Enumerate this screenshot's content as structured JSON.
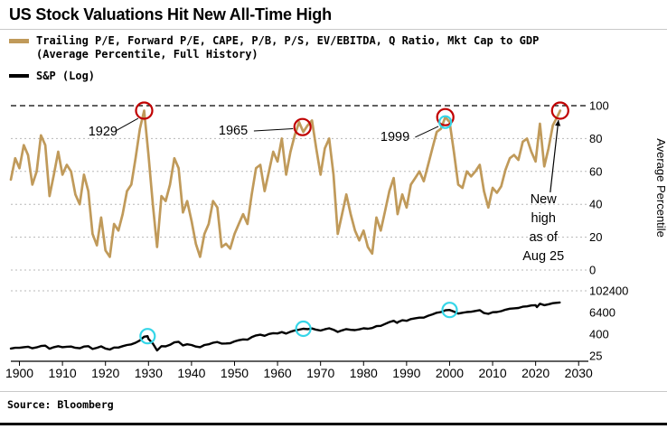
{
  "header": {
    "title": "US Stock Valuations Hit New All-Time High"
  },
  "legend": {
    "valuation": {
      "line1": "Trailing P/E, Forward P/E, CAPE, P/B, P/S, EV/EBITDA, Q Ratio, Mkt Cap to GDP",
      "line2": "(Average Percentile, Full History)",
      "color": "#C09A5A"
    },
    "sp": {
      "label": "S&P (Log)",
      "color": "#000000"
    }
  },
  "footer": {
    "source": "Source: Bloomberg"
  },
  "chart_data": {
    "type": "line",
    "title": "US Stock Valuations Hit New All-Time High",
    "x": {
      "ticks": [
        1900,
        1910,
        1920,
        1930,
        1940,
        1950,
        1960,
        1970,
        1980,
        1990,
        2000,
        2010,
        2020,
        2030
      ],
      "range": [
        1898,
        2031
      ]
    },
    "axes": {
      "percentile": {
        "label": "Average Percentile",
        "side": "right",
        "range": [
          0,
          100
        ],
        "ticks": [
          0,
          20,
          40,
          60,
          80,
          100
        ],
        "grid": [
          0,
          20,
          40,
          60,
          80
        ]
      },
      "sp_log": {
        "side": "right",
        "scale": "log",
        "ticks": [
          25,
          400,
          6400,
          102400
        ],
        "grid": [
          102400
        ]
      }
    },
    "reference_line": {
      "axis": "percentile",
      "value": 100,
      "style": "dashed"
    },
    "series": [
      {
        "name": "Valuation composite (Average Percentile, Full History)",
        "axis": "percentile",
        "color": "#C09A5A",
        "width": 2.7,
        "points": [
          [
            1898,
            55
          ],
          [
            1899,
            68
          ],
          [
            1900,
            62
          ],
          [
            1901,
            76
          ],
          [
            1902,
            70
          ],
          [
            1903,
            52
          ],
          [
            1904,
            60
          ],
          [
            1905,
            82
          ],
          [
            1906,
            76
          ],
          [
            1907,
            45
          ],
          [
            1908,
            58
          ],
          [
            1909,
            72
          ],
          [
            1910,
            58
          ],
          [
            1911,
            64
          ],
          [
            1912,
            60
          ],
          [
            1913,
            46
          ],
          [
            1914,
            40
          ],
          [
            1915,
            58
          ],
          [
            1916,
            48
          ],
          [
            1917,
            22
          ],
          [
            1918,
            15
          ],
          [
            1919,
            32
          ],
          [
            1920,
            12
          ],
          [
            1921,
            8
          ],
          [
            1922,
            28
          ],
          [
            1923,
            24
          ],
          [
            1924,
            34
          ],
          [
            1925,
            48
          ],
          [
            1926,
            52
          ],
          [
            1927,
            68
          ],
          [
            1928,
            86
          ],
          [
            1929,
            97
          ],
          [
            1930,
            70
          ],
          [
            1931,
            40
          ],
          [
            1932,
            14
          ],
          [
            1933,
            45
          ],
          [
            1934,
            42
          ],
          [
            1935,
            52
          ],
          [
            1936,
            68
          ],
          [
            1937,
            62
          ],
          [
            1938,
            35
          ],
          [
            1939,
            42
          ],
          [
            1940,
            30
          ],
          [
            1941,
            16
          ],
          [
            1942,
            8
          ],
          [
            1943,
            22
          ],
          [
            1944,
            28
          ],
          [
            1945,
            42
          ],
          [
            1946,
            38
          ],
          [
            1947,
            14
          ],
          [
            1948,
            16
          ],
          [
            1949,
            13
          ],
          [
            1950,
            22
          ],
          [
            1951,
            28
          ],
          [
            1952,
            34
          ],
          [
            1953,
            28
          ],
          [
            1954,
            46
          ],
          [
            1955,
            62
          ],
          [
            1956,
            64
          ],
          [
            1957,
            48
          ],
          [
            1958,
            60
          ],
          [
            1959,
            72
          ],
          [
            1960,
            66
          ],
          [
            1961,
            80
          ],
          [
            1962,
            58
          ],
          [
            1963,
            72
          ],
          [
            1964,
            82
          ],
          [
            1965,
            90
          ],
          [
            1966,
            84
          ],
          [
            1967,
            88
          ],
          [
            1968,
            91
          ],
          [
            1969,
            74
          ],
          [
            1970,
            58
          ],
          [
            1971,
            74
          ],
          [
            1972,
            80
          ],
          [
            1973,
            58
          ],
          [
            1974,
            22
          ],
          [
            1975,
            34
          ],
          [
            1976,
            46
          ],
          [
            1977,
            34
          ],
          [
            1978,
            24
          ],
          [
            1979,
            18
          ],
          [
            1980,
            24
          ],
          [
            1981,
            14
          ],
          [
            1982,
            10
          ],
          [
            1983,
            32
          ],
          [
            1984,
            24
          ],
          [
            1985,
            36
          ],
          [
            1986,
            48
          ],
          [
            1987,
            56
          ],
          [
            1987.9,
            34
          ],
          [
            1989,
            46
          ],
          [
            1990,
            38
          ],
          [
            1991,
            52
          ],
          [
            1992,
            56
          ],
          [
            1993,
            60
          ],
          [
            1994,
            54
          ],
          [
            1995,
            64
          ],
          [
            1996,
            74
          ],
          [
            1997,
            84
          ],
          [
            1998,
            86
          ],
          [
            1999,
            93
          ],
          [
            2000,
            90
          ],
          [
            2001,
            72
          ],
          [
            2002,
            52
          ],
          [
            2003,
            50
          ],
          [
            2004,
            60
          ],
          [
            2005,
            57
          ],
          [
            2006,
            60
          ],
          [
            2007,
            64
          ],
          [
            2008,
            48
          ],
          [
            2009,
            38
          ],
          [
            2010,
            50
          ],
          [
            2011,
            47
          ],
          [
            2012,
            51
          ],
          [
            2013,
            61
          ],
          [
            2014,
            68
          ],
          [
            2015,
            70
          ],
          [
            2016,
            67
          ],
          [
            2017,
            78
          ],
          [
            2018,
            80
          ],
          [
            2019,
            72
          ],
          [
            2020,
            66
          ],
          [
            2021,
            89
          ],
          [
            2022,
            63
          ],
          [
            2023,
            74
          ],
          [
            2024,
            88
          ],
          [
            2025,
            93
          ],
          [
            2025.7,
            97
          ]
        ]
      },
      {
        "name": "S&P (Log)",
        "axis": "sp_log",
        "color": "#000000",
        "width": 2.4,
        "points": [
          [
            1898,
            64
          ],
          [
            1899,
            70
          ],
          [
            1900,
            70
          ],
          [
            1901,
            76
          ],
          [
            1902,
            80
          ],
          [
            1903,
            66
          ],
          [
            1904,
            74
          ],
          [
            1905,
            88
          ],
          [
            1906,
            92
          ],
          [
            1907,
            62
          ],
          [
            1908,
            76
          ],
          [
            1909,
            86
          ],
          [
            1910,
            76
          ],
          [
            1911,
            80
          ],
          [
            1912,
            82
          ],
          [
            1913,
            70
          ],
          [
            1914,
            66
          ],
          [
            1915,
            82
          ],
          [
            1916,
            86
          ],
          [
            1917,
            60
          ],
          [
            1918,
            70
          ],
          [
            1919,
            84
          ],
          [
            1920,
            64
          ],
          [
            1921,
            56
          ],
          [
            1922,
            72
          ],
          [
            1923,
            72
          ],
          [
            1924,
            86
          ],
          [
            1925,
            100
          ],
          [
            1926,
            108
          ],
          [
            1927,
            134
          ],
          [
            1928,
            180
          ],
          [
            1929,
            290
          ],
          [
            1929.8,
            310
          ],
          [
            1930,
            220
          ],
          [
            1931,
            120
          ],
          [
            1932,
            50
          ],
          [
            1933,
            86
          ],
          [
            1934,
            84
          ],
          [
            1935,
            102
          ],
          [
            1936,
            140
          ],
          [
            1937,
            152
          ],
          [
            1938,
            96
          ],
          [
            1939,
            110
          ],
          [
            1940,
            100
          ],
          [
            1941,
            82
          ],
          [
            1942,
            76
          ],
          [
            1943,
            100
          ],
          [
            1944,
            110
          ],
          [
            1945,
            134
          ],
          [
            1946,
            146
          ],
          [
            1947,
            120
          ],
          [
            1948,
            122
          ],
          [
            1949,
            126
          ],
          [
            1950,
            158
          ],
          [
            1951,
            184
          ],
          [
            1952,
            204
          ],
          [
            1953,
            198
          ],
          [
            1954,
            272
          ],
          [
            1955,
            340
          ],
          [
            1956,
            372
          ],
          [
            1957,
            324
          ],
          [
            1958,
            408
          ],
          [
            1959,
            452
          ],
          [
            1960,
            440
          ],
          [
            1961,
            520
          ],
          [
            1962,
            436
          ],
          [
            1963,
            548
          ],
          [
            1964,
            640
          ],
          [
            1965,
            712
          ],
          [
            1966,
            800
          ],
          [
            1967,
            764
          ],
          [
            1968,
            828
          ],
          [
            1969,
            704
          ],
          [
            1970,
            636
          ],
          [
            1971,
            744
          ],
          [
            1972,
            844
          ],
          [
            1973,
            704
          ],
          [
            1974,
            536
          ],
          [
            1975,
            648
          ],
          [
            1976,
            764
          ],
          [
            1977,
            696
          ],
          [
            1978,
            676
          ],
          [
            1979,
            740
          ],
          [
            1980,
            844
          ],
          [
            1981,
            796
          ],
          [
            1982,
            880
          ],
          [
            1983,
            1120
          ],
          [
            1984,
            1160
          ],
          [
            1985,
            1480
          ],
          [
            1986,
            1880
          ],
          [
            1987,
            2200
          ],
          [
            1987.8,
            1700
          ],
          [
            1988,
            1880
          ],
          [
            1989,
            2360
          ],
          [
            1990,
            2200
          ],
          [
            1991,
            2760
          ],
          [
            1992,
            3040
          ],
          [
            1993,
            3320
          ],
          [
            1994,
            3320
          ],
          [
            1995,
            4240
          ],
          [
            1996,
            5000
          ],
          [
            1997,
            6160
          ],
          [
            1998,
            6800
          ],
          [
            1999,
            8400
          ],
          [
            2000,
            8800
          ],
          [
            2001,
            7200
          ],
          [
            2002,
            5600
          ],
          [
            2003,
            6200
          ],
          [
            2004,
            6800
          ],
          [
            2005,
            7000
          ],
          [
            2006,
            7800
          ],
          [
            2007,
            8600
          ],
          [
            2008,
            6000
          ],
          [
            2009,
            5400
          ],
          [
            2010,
            6600
          ],
          [
            2011,
            6800
          ],
          [
            2012,
            7600
          ],
          [
            2013,
            9200
          ],
          [
            2014,
            10400
          ],
          [
            2015,
            10900
          ],
          [
            2016,
            11400
          ],
          [
            2017,
            13400
          ],
          [
            2018,
            14000
          ],
          [
            2019,
            15800
          ],
          [
            2020,
            16400
          ],
          [
            2020.3,
            12800
          ],
          [
            2021,
            19600
          ],
          [
            2022,
            16400
          ],
          [
            2023,
            18400
          ],
          [
            2024,
            21000
          ],
          [
            2025.6,
            23000
          ]
        ]
      }
    ],
    "markers": [
      {
        "shape": "circle",
        "color": "#C00000",
        "axis": "percentile",
        "year": 1929,
        "value": 97,
        "r": 9
      },
      {
        "shape": "circle",
        "color": "#C00000",
        "axis": "percentile",
        "year": 1965.8,
        "value": 87,
        "r": 9
      },
      {
        "shape": "circle",
        "color": "#C00000",
        "axis": "percentile",
        "year": 1999,
        "value": 93,
        "r": 9
      },
      {
        "shape": "circle",
        "color": "#C00000",
        "axis": "percentile",
        "year": 2025.7,
        "value": 97,
        "r": 9
      },
      {
        "shape": "circle",
        "color": "#35D6E8",
        "axis": "percentile",
        "year": 1999,
        "value": 90,
        "r": 6.5
      },
      {
        "shape": "circle",
        "color": "#35D6E8",
        "axis": "sp_log",
        "year": 1929.8,
        "value": 310,
        "r": 8
      },
      {
        "shape": "circle",
        "color": "#35D6E8",
        "axis": "sp_log",
        "year": 1966,
        "value": 800,
        "r": 8
      },
      {
        "shape": "circle",
        "color": "#35D6E8",
        "axis": "sp_log",
        "year": 2000,
        "value": 8800,
        "r": 8
      }
    ],
    "annotations": [
      {
        "text": "1929",
        "at": [
          1919.4,
          82
        ],
        "anchor": "middle",
        "leader": [
          [
            1922.3,
            84.6
          ],
          [
            1927.6,
            92.3
          ]
        ]
      },
      {
        "text": "1965",
        "at": [
          1949.7,
          82.4
        ],
        "anchor": "middle",
        "leader": [
          [
            1954.5,
            84.6
          ],
          [
            1963.6,
            86.0
          ]
        ]
      },
      {
        "text": "1999",
        "at": [
          1987.3,
          78.6
        ],
        "anchor": "middle",
        "leader": [
          [
            1992.0,
            80.8
          ],
          [
            1997.4,
            87.4
          ]
        ]
      },
      {
        "text": "New\nhigh\nas of\nAug 25",
        "at": [
          2021.8,
          40.7
        ],
        "anchor": "middle",
        "arrow": [
          [
            2023.4,
            47.3
          ],
          [
            2025.3,
            91.2
          ]
        ]
      }
    ]
  }
}
